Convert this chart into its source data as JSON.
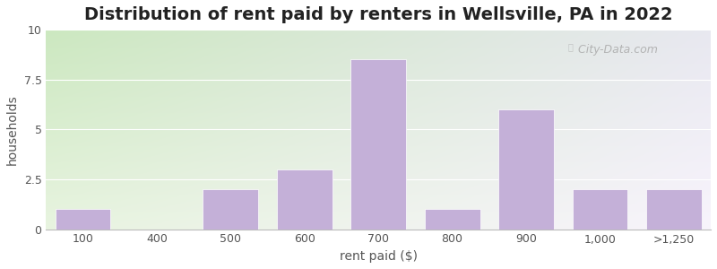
{
  "categories": [
    "100",
    "400",
    "500",
    "600",
    "700",
    "800",
    "900",
    "1,000",
    ">1,250"
  ],
  "values": [
    1,
    0,
    2,
    3,
    8.5,
    1,
    6,
    2,
    2
  ],
  "bar_color": "#C4B0D8",
  "bar_edgecolor": "#C4B0D8",
  "title": "Distribution of rent paid by renters in Wellsville, PA in 2022",
  "xlabel": "rent paid ($)",
  "ylabel": "households",
  "ylim": [
    0,
    10
  ],
  "yticks": [
    0,
    2.5,
    5,
    7.5,
    10
  ],
  "title_fontsize": 14,
  "label_fontsize": 10,
  "bg_topleft_color": "#cce8c0",
  "bg_topright_color": "#e8e8f0",
  "bg_botleft_color": "#e8f4e0",
  "bg_botright_color": "#f8f4fc",
  "watermark": "City-Data.com",
  "watermark_icon": "ⓘ"
}
